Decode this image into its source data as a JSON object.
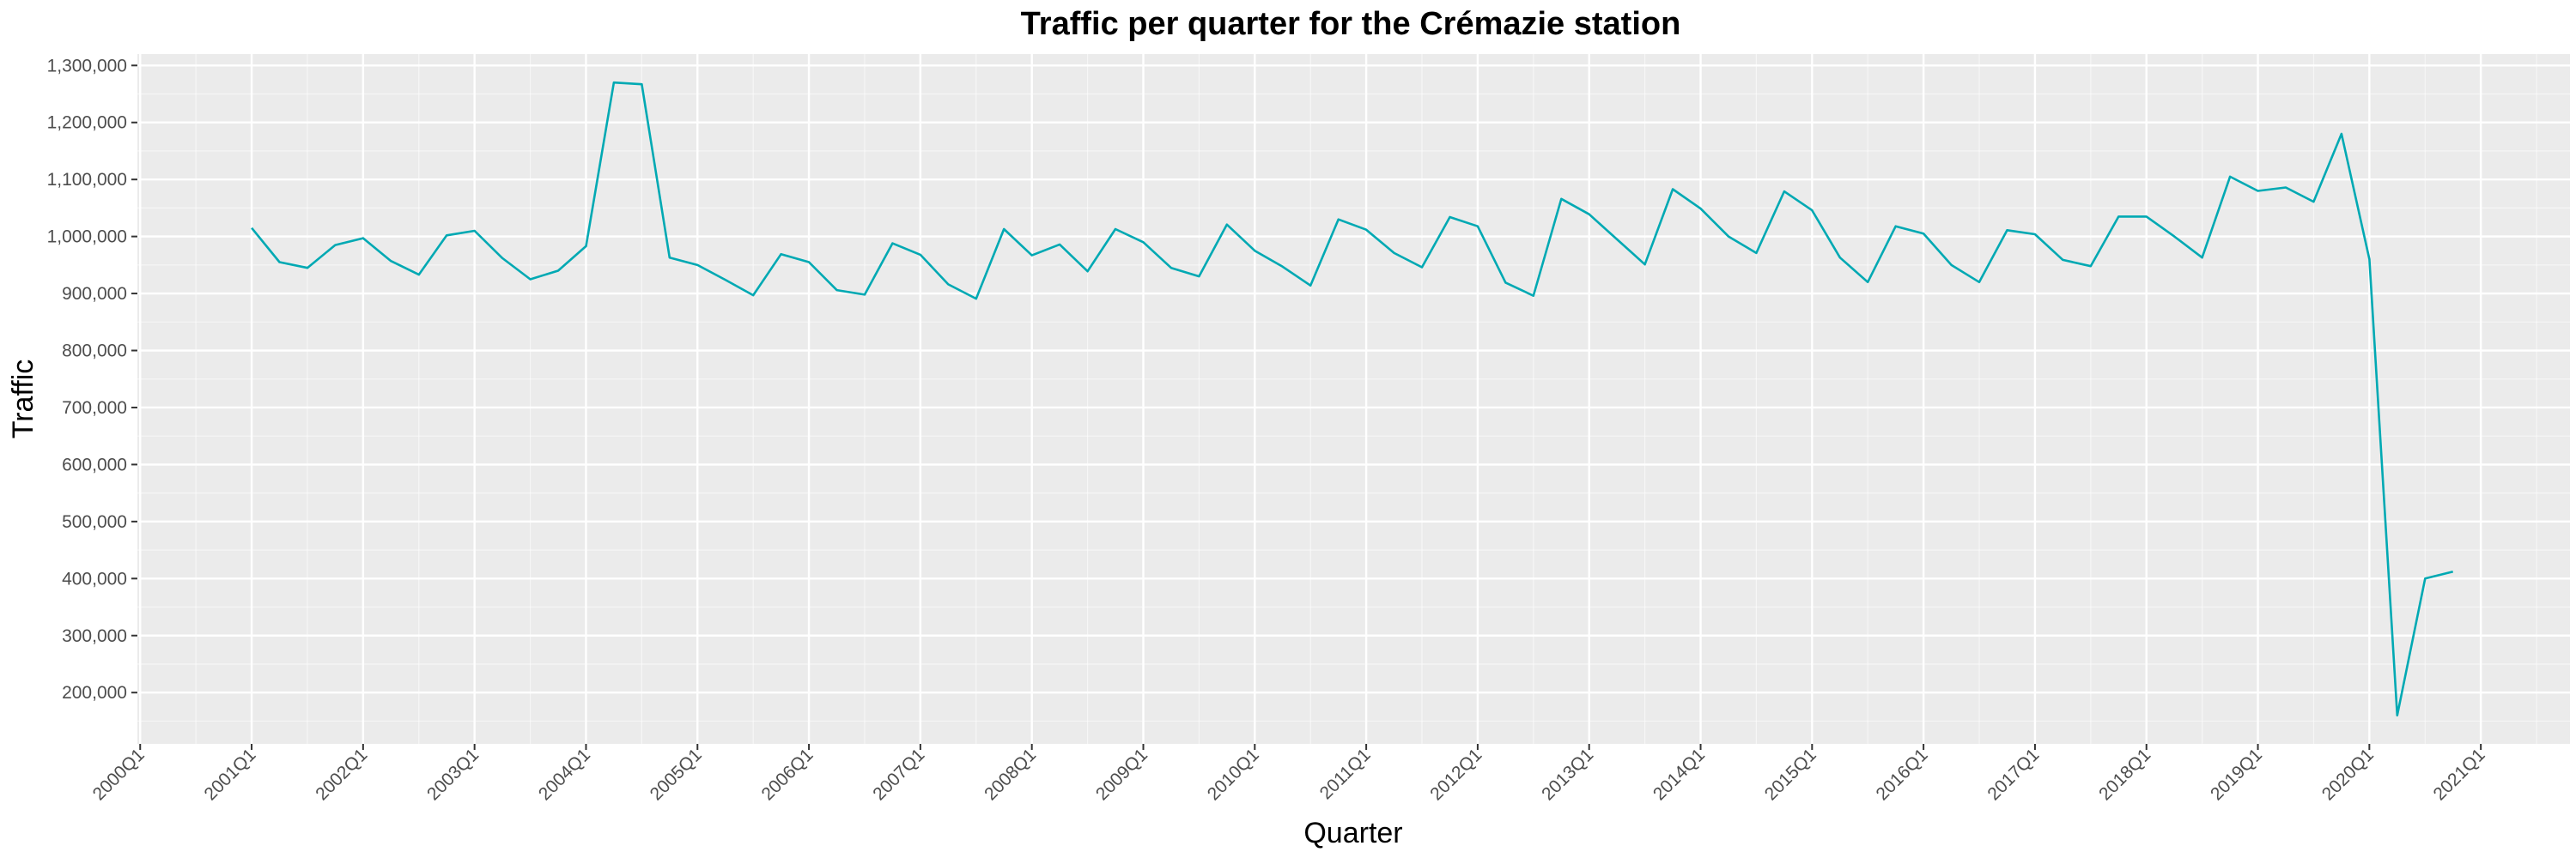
{
  "chart_data": {
    "type": "line",
    "title": "Traffic per quarter for the Crémazie station",
    "xlabel": "Quarter",
    "ylabel": "Traffic",
    "x_ticks": [
      "2000Q1",
      "2001Q1",
      "2002Q1",
      "2003Q1",
      "2004Q1",
      "2005Q1",
      "2006Q1",
      "2007Q1",
      "2008Q1",
      "2009Q1",
      "2010Q1",
      "2011Q1",
      "2012Q1",
      "2013Q1",
      "2014Q1",
      "2015Q1",
      "2016Q1",
      "2017Q1",
      "2018Q1",
      "2019Q1",
      "2020Q1",
      "2021Q1"
    ],
    "y_ticks": [
      200000,
      300000,
      400000,
      500000,
      600000,
      700000,
      800000,
      900000,
      1000000,
      1100000,
      1200000,
      1300000
    ],
    "y_tick_labels": [
      "200,000",
      "300,000",
      "400,000",
      "500,000",
      "600,000",
      "700,000",
      "800,000",
      "900,000",
      "1,000,000",
      "1,100,000",
      "1,200,000",
      "1,300,000"
    ],
    "xlim": [
      "2000Q1",
      "2021Q4"
    ],
    "ylim": [
      110000,
      1320000
    ],
    "grid": true,
    "colors": {
      "line": "#00a9b3",
      "panel": "#ebebeb",
      "grid": "#ffffff"
    },
    "series": [
      {
        "x": [
          "2001Q1",
          "2001Q2",
          "2001Q3",
          "2001Q4",
          "2002Q1",
          "2002Q2",
          "2002Q3",
          "2002Q4",
          "2003Q1",
          "2003Q2",
          "2003Q3",
          "2003Q4",
          "2004Q1",
          "2004Q2",
          "2004Q3",
          "2004Q4",
          "2005Q1",
          "2005Q2",
          "2005Q3",
          "2005Q4",
          "2006Q1",
          "2006Q2",
          "2006Q3",
          "2006Q4",
          "2007Q1",
          "2007Q2",
          "2007Q3",
          "2007Q4",
          "2008Q1",
          "2008Q2",
          "2008Q3",
          "2008Q4",
          "2009Q1",
          "2009Q2",
          "2009Q3",
          "2009Q4",
          "2010Q1",
          "2010Q2",
          "2010Q3",
          "2010Q4",
          "2011Q1",
          "2011Q2",
          "2011Q3",
          "2011Q4",
          "2012Q1",
          "2012Q2",
          "2012Q3",
          "2012Q4",
          "2013Q1",
          "2013Q2",
          "2013Q3",
          "2013Q4",
          "2014Q1",
          "2014Q2",
          "2014Q3",
          "2014Q4",
          "2015Q1",
          "2015Q2",
          "2015Q3",
          "2015Q4",
          "2016Q1",
          "2016Q2",
          "2016Q3",
          "2016Q4",
          "2017Q1",
          "2017Q2",
          "2017Q3",
          "2017Q4",
          "2018Q1",
          "2018Q2",
          "2018Q3",
          "2018Q4",
          "2019Q1",
          "2019Q2",
          "2019Q3",
          "2019Q4",
          "2020Q1",
          "2020Q2",
          "2020Q3",
          "2020Q4"
        ],
        "values": [
          1015000,
          955000,
          945000,
          985000,
          997000,
          957000,
          933000,
          1002000,
          1010000,
          962000,
          925000,
          940000,
          983000,
          1270000,
          1267000,
          963000,
          950000,
          924000,
          897000,
          969000,
          955000,
          906000,
          898000,
          988000,
          968000,
          916000,
          891000,
          1013000,
          967000,
          986000,
          939000,
          1013000,
          990000,
          945000,
          930000,
          1021000,
          975000,
          947000,
          914000,
          1030000,
          1012000,
          971000,
          946000,
          1034000,
          1018000,
          919000,
          896000,
          1066000,
          1039000,
          995000,
          951000,
          1083000,
          1049000,
          1000000,
          971000,
          1079000,
          1046000,
          963000,
          920000,
          1018000,
          1005000,
          950000,
          920000,
          1011000,
          1004000,
          959000,
          948000,
          1035000,
          1035000,
          1000000,
          963000,
          1105000,
          1080000,
          1086000,
          1061000,
          1180000,
          960000,
          160000,
          400000,
          412000
        ]
      }
    ]
  }
}
